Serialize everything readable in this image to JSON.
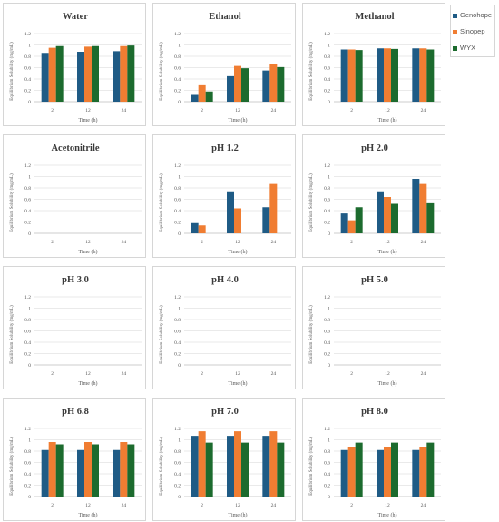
{
  "legend": [
    {
      "name": "Genohope",
      "color": "#1f5b85"
    },
    {
      "name": "Sinopep",
      "color": "#f07d32"
    },
    {
      "name": "WYX",
      "color": "#1c6b2e"
    }
  ],
  "chart_data": [
    {
      "type": "bar",
      "title": "Water",
      "xlabel": "Time (h)",
      "ylabel": "Equilibrium Solubility (mg/mL)",
      "categories": [
        "2",
        "12",
        "24"
      ],
      "yticks": [
        "0",
        "0.2",
        "0.4",
        "0.6",
        "0.8",
        "1",
        "1.2"
      ],
      "ylim": [
        0,
        1.2
      ],
      "series": [
        {
          "name": "Genohope",
          "values": [
            0.86,
            0.88,
            0.89
          ]
        },
        {
          "name": "Sinopep",
          "values": [
            0.95,
            0.97,
            0.98
          ]
        },
        {
          "name": "WYX",
          "values": [
            0.98,
            0.98,
            0.99
          ]
        }
      ]
    },
    {
      "type": "bar",
      "title": "Ethanol",
      "xlabel": "Time (h)",
      "ylabel": "Equilibrium Solubility (mg/mL)",
      "categories": [
        "2",
        "12",
        "24"
      ],
      "yticks": [
        "0",
        "0.2",
        "0.4",
        "0.6",
        "0.8",
        "1",
        "1.2"
      ],
      "ylim": [
        0,
        1.2
      ],
      "series": [
        {
          "name": "Genohope",
          "values": [
            0.12,
            0.45,
            0.55
          ]
        },
        {
          "name": "Sinopep",
          "values": [
            0.29,
            0.63,
            0.66
          ]
        },
        {
          "name": "WYX",
          "values": [
            0.18,
            0.59,
            0.61
          ]
        }
      ]
    },
    {
      "type": "bar",
      "title": "Methanol",
      "xlabel": "Time (h)",
      "ylabel": "Equilibrium Solubility (mg/mL)",
      "categories": [
        "2",
        "12",
        "24"
      ],
      "yticks": [
        "0",
        "0.2",
        "0.4",
        "0.6",
        "0.8",
        "1",
        "1.2"
      ],
      "ylim": [
        0,
        1.2
      ],
      "series": [
        {
          "name": "Genohope",
          "values": [
            0.92,
            0.94,
            0.94
          ]
        },
        {
          "name": "Sinopep",
          "values": [
            0.92,
            0.94,
            0.94
          ]
        },
        {
          "name": "WYX",
          "values": [
            0.91,
            0.93,
            0.92
          ]
        }
      ]
    },
    {
      "type": "bar",
      "title": "Acetonitrile",
      "xlabel": "Time (h)",
      "ylabel": "Equilibrium Solubility (mg/mL)",
      "categories": [
        "2",
        "12",
        "24"
      ],
      "yticks": [
        "0",
        "0.2",
        "0.4",
        "0.6",
        "0.8",
        "1",
        "1.2"
      ],
      "ylim": [
        0,
        1.2
      ],
      "series": [
        {
          "name": "Genohope",
          "values": [
            0,
            0,
            0
          ]
        },
        {
          "name": "Sinopep",
          "values": [
            0,
            0,
            0
          ]
        },
        {
          "name": "WYX",
          "values": [
            0,
            0,
            0
          ]
        }
      ]
    },
    {
      "type": "bar",
      "title": "pH 1.2",
      "xlabel": "Time (h)",
      "ylabel": "Equilibrium Solubility (mg/mL)",
      "categories": [
        "2",
        "12",
        "24"
      ],
      "yticks": [
        "0",
        "0.2",
        "0.4",
        "0.6",
        "0.8",
        "1",
        "1.2"
      ],
      "ylim": [
        0,
        1.2
      ],
      "series": [
        {
          "name": "Genohope",
          "values": [
            0.18,
            0.74,
            0.46
          ]
        },
        {
          "name": "Sinopep",
          "values": [
            0.14,
            0.44,
            0.87
          ]
        },
        {
          "name": "WYX",
          "values": [
            0,
            0,
            0
          ]
        }
      ]
    },
    {
      "type": "bar",
      "title": "pH 2.0",
      "xlabel": "Time (h)",
      "ylabel": "Equilibrium Solubility (mg/mL)",
      "categories": [
        "2",
        "12",
        "24"
      ],
      "yticks": [
        "0",
        "0.2",
        "0.4",
        "0.6",
        "0.8",
        "1",
        "1.2"
      ],
      "ylim": [
        0,
        1.2
      ],
      "series": [
        {
          "name": "Genohope",
          "values": [
            0.35,
            0.74,
            0.96
          ]
        },
        {
          "name": "Sinopep",
          "values": [
            0.23,
            0.64,
            0.87
          ]
        },
        {
          "name": "WYX",
          "values": [
            0.46,
            0.52,
            0.53
          ]
        }
      ]
    },
    {
      "type": "bar",
      "title": "pH 3.0",
      "xlabel": "Time (h)",
      "ylabel": "Equilibrium Solubility (mg/mL)",
      "categories": [
        "2",
        "12",
        "24"
      ],
      "yticks": [
        "0",
        "0.2",
        "0.4",
        "0.6",
        "0.8",
        "1",
        "1.2"
      ],
      "ylim": [
        0,
        1.2
      ],
      "series": [
        {
          "name": "Genohope",
          "values": [
            0,
            0,
            0
          ]
        },
        {
          "name": "Sinopep",
          "values": [
            0,
            0,
            0
          ]
        },
        {
          "name": "WYX",
          "values": [
            0,
            0,
            0
          ]
        }
      ]
    },
    {
      "type": "bar",
      "title": "pH 4.0",
      "xlabel": "Time (h)",
      "ylabel": "Equilibrium Solubility (mg/mL)",
      "categories": [
        "2",
        "12",
        "24"
      ],
      "yticks": [
        "0",
        "0.2",
        "0.4",
        "0.6",
        "0.8",
        "1",
        "1.2"
      ],
      "ylim": [
        0,
        1.2
      ],
      "series": [
        {
          "name": "Genohope",
          "values": [
            0,
            0,
            0
          ]
        },
        {
          "name": "Sinopep",
          "values": [
            0,
            0,
            0
          ]
        },
        {
          "name": "WYX",
          "values": [
            0,
            0,
            0
          ]
        }
      ]
    },
    {
      "type": "bar",
      "title": "pH 5.0",
      "xlabel": "Time (h)",
      "ylabel": "Equilibrium Solubility (mg/mL)",
      "categories": [
        "2",
        "12",
        "24"
      ],
      "yticks": [
        "0",
        "0.2",
        "0.4",
        "0.6",
        "0.8",
        "1",
        "1.2"
      ],
      "ylim": [
        0,
        1.2
      ],
      "series": [
        {
          "name": "Genohope",
          "values": [
            0,
            0,
            0
          ]
        },
        {
          "name": "Sinopep",
          "values": [
            0,
            0,
            0
          ]
        },
        {
          "name": "WYX",
          "values": [
            0,
            0,
            0
          ]
        }
      ]
    },
    {
      "type": "bar",
      "title": "pH 6.8",
      "xlabel": "Time (h)",
      "ylabel": "Equilibrium Solubility (mg/mL)",
      "categories": [
        "2",
        "12",
        "24"
      ],
      "yticks": [
        "0",
        "0.2",
        "0.4",
        "0.6",
        "0.8",
        "1",
        "1.2"
      ],
      "ylim": [
        0,
        1.2
      ],
      "series": [
        {
          "name": "Genohope",
          "values": [
            0.82,
            0.82,
            0.82
          ]
        },
        {
          "name": "Sinopep",
          "values": [
            0.96,
            0.96,
            0.96
          ]
        },
        {
          "name": "WYX",
          "values": [
            0.92,
            0.92,
            0.92
          ]
        }
      ]
    },
    {
      "type": "bar",
      "title": "pH 7.0",
      "xlabel": "Time (h)",
      "ylabel": "Equilibrium Solubility (mg/mL)",
      "categories": [
        "2",
        "12",
        "24"
      ],
      "yticks": [
        "0",
        "0.2",
        "0.4",
        "0.6",
        "0.8",
        "1",
        "1.2"
      ],
      "ylim": [
        0,
        1.2
      ],
      "series": [
        {
          "name": "Genohope",
          "values": [
            1.07,
            1.07,
            1.07
          ]
        },
        {
          "name": "Sinopep",
          "values": [
            1.15,
            1.15,
            1.15
          ]
        },
        {
          "name": "WYX",
          "values": [
            0.95,
            0.95,
            0.95
          ]
        }
      ]
    },
    {
      "type": "bar",
      "title": "pH 8.0",
      "xlabel": "Time (h)",
      "ylabel": "Equilibrium Solubility (mg/mL)",
      "categories": [
        "2",
        "12",
        "24"
      ],
      "yticks": [
        "0",
        "0.2",
        "0.4",
        "0.6",
        "0.8",
        "1",
        "1.2"
      ],
      "ylim": [
        0,
        1.2
      ],
      "series": [
        {
          "name": "Genohope",
          "values": [
            0.82,
            0.82,
            0.82
          ]
        },
        {
          "name": "Sinopep",
          "values": [
            0.88,
            0.88,
            0.88
          ]
        },
        {
          "name": "WYX",
          "values": [
            0.95,
            0.95,
            0.95
          ]
        }
      ]
    }
  ]
}
